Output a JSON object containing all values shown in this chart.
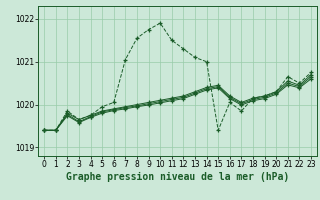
{
  "title": "Graphe pression niveau de la mer (hPa)",
  "background_color": "#cce8d8",
  "plot_bg_color": "#cce8d8",
  "grid_color": "#99ccaa",
  "line_color": "#1a5c28",
  "xlim": [
    -0.5,
    23.5
  ],
  "ylim": [
    1018.8,
    1022.3
  ],
  "yticks": [
    1019,
    1020,
    1021,
    1022
  ],
  "xticks": [
    0,
    1,
    2,
    3,
    4,
    5,
    6,
    7,
    8,
    9,
    10,
    11,
    12,
    13,
    14,
    15,
    16,
    17,
    18,
    19,
    20,
    21,
    22,
    23
  ],
  "tick_fontsize": 5.5,
  "title_fontsize": 7,
  "series": [
    {
      "x": [
        0,
        1,
        2,
        3,
        4,
        5,
        6,
        7,
        8,
        9,
        10,
        11,
        12,
        13,
        14,
        15,
        16,
        17,
        18,
        19,
        20,
        21,
        22,
        23
      ],
      "y": [
        1019.4,
        1019.4,
        1019.85,
        1019.65,
        1019.75,
        1019.95,
        1020.05,
        1021.05,
        1021.55,
        1021.75,
        1021.9,
        1021.5,
        1021.3,
        1021.1,
        1021.0,
        1019.4,
        1020.05,
        1019.85,
        1020.15,
        1020.2,
        1020.3,
        1020.65,
        1020.5,
        1020.75
      ],
      "linestyle": "--",
      "marker": "+"
    },
    {
      "x": [
        0,
        1,
        2,
        3,
        4,
        5,
        6,
        7,
        8,
        9,
        10,
        11,
        12,
        13,
        14,
        15,
        16,
        17,
        18,
        19,
        20,
        21,
        22,
        23
      ],
      "y": [
        1019.4,
        1019.4,
        1019.8,
        1019.65,
        1019.75,
        1019.85,
        1019.9,
        1019.95,
        1020.0,
        1020.05,
        1020.1,
        1020.15,
        1020.2,
        1020.3,
        1020.4,
        1020.45,
        1020.2,
        1020.05,
        1020.15,
        1020.2,
        1020.3,
        1020.55,
        1020.45,
        1020.7
      ],
      "linestyle": "-",
      "marker": "+"
    },
    {
      "x": [
        0,
        1,
        2,
        3,
        4,
        5,
        6,
        7,
        8,
        9,
        10,
        11,
        12,
        13,
        14,
        15,
        16,
        17,
        18,
        19,
        20,
        21,
        22,
        23
      ],
      "y": [
        1019.4,
        1019.4,
        1019.77,
        1019.6,
        1019.72,
        1019.83,
        1019.88,
        1019.93,
        1019.97,
        1020.02,
        1020.07,
        1020.12,
        1020.17,
        1020.27,
        1020.37,
        1020.42,
        1020.17,
        1020.02,
        1020.12,
        1020.17,
        1020.27,
        1020.5,
        1020.42,
        1020.65
      ],
      "linestyle": "-",
      "marker": "+"
    },
    {
      "x": [
        0,
        1,
        2,
        3,
        4,
        5,
        6,
        7,
        8,
        9,
        10,
        11,
        12,
        13,
        14,
        15,
        16,
        17,
        18,
        19,
        20,
        21,
        22,
        23
      ],
      "y": [
        1019.4,
        1019.4,
        1019.74,
        1019.58,
        1019.7,
        1019.8,
        1019.86,
        1019.9,
        1019.95,
        1019.99,
        1020.04,
        1020.09,
        1020.14,
        1020.24,
        1020.34,
        1020.39,
        1020.14,
        1019.99,
        1020.09,
        1020.14,
        1020.24,
        1020.46,
        1020.39,
        1020.6
      ],
      "linestyle": "-",
      "marker": "+"
    }
  ]
}
